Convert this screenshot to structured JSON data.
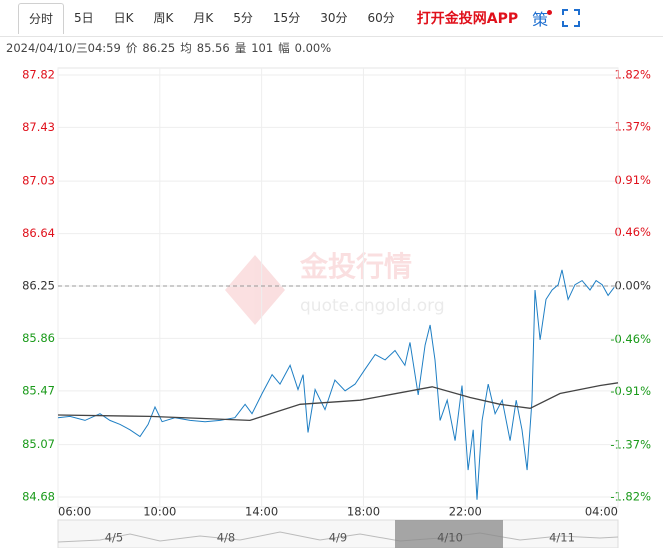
{
  "tabs": [
    "分时",
    "5日",
    "日K",
    "周K",
    "月K",
    "5分",
    "15分",
    "30分",
    "60分"
  ],
  "app_link": "打开金投网APP",
  "strategy_button": "策",
  "info": {
    "time": "2024/04/10/三04:59",
    "items": [
      {
        "label": "价",
        "value": "86.25"
      },
      {
        "label": "均",
        "value": "85.56"
      },
      {
        "label": "量",
        "value": "101"
      },
      {
        "label": "幅",
        "value": "0.00%"
      }
    ]
  },
  "watermark": {
    "title": "金投行情",
    "url": "quote.cngold.org"
  },
  "navigator": {
    "dates": [
      "4/5",
      "4/8",
      "4/9",
      "4/10",
      "4/11"
    ]
  },
  "chart_data": {
    "type": "line",
    "xlim": [
      0,
      22
    ],
    "xticks": [
      {
        "value": 0,
        "label": "06:00"
      },
      {
        "value": 4,
        "label": "10:00"
      },
      {
        "value": 8,
        "label": "14:00"
      },
      {
        "value": 12,
        "label": "18:00"
      },
      {
        "value": 16,
        "label": "22:00"
      },
      {
        "value": 22,
        "label": "04:00"
      }
    ],
    "ylim": [
      84.68,
      87.82
    ],
    "yticks": [
      87.82,
      87.43,
      87.03,
      86.64,
      86.25,
      85.86,
      85.47,
      85.07,
      84.68
    ],
    "y2lim": [
      -1.82,
      1.82
    ],
    "y2ticks": [
      {
        "value": 1.82,
        "label": "1.82%"
      },
      {
        "value": 1.37,
        "label": "1.37%"
      },
      {
        "value": 0.91,
        "label": "0.91%"
      },
      {
        "value": 0.46,
        "label": "0.46%"
      },
      {
        "value": 0,
        "label": "0.00%"
      },
      {
        "value": -0.46,
        "label": "-0.46%"
      },
      {
        "value": -0.91,
        "label": "-0.91%"
      },
      {
        "value": -1.37,
        "label": "-1.37%"
      },
      {
        "value": -1.82,
        "label": "-1.82%"
      }
    ],
    "reference_line": 86.25,
    "up_color": "#e0101b",
    "down_color": "#1a9a1a",
    "flat_color": "#333333",
    "grid": true,
    "series": [
      {
        "color": "#1f7fc4",
        "x": [
          0,
          0.47,
          1.06,
          1.65,
          2.04,
          2.44,
          2.83,
          3.22,
          3.54,
          3.81,
          4.09,
          4.6,
          5.19,
          5.78,
          6.37,
          6.95,
          7.35,
          7.62,
          8.02,
          8.41,
          8.72,
          9.12,
          9.43,
          9.63,
          9.82,
          10.1,
          10.49,
          10.88,
          11.28,
          11.67,
          12.06,
          12.46,
          12.85,
          13.24,
          13.63,
          13.83,
          14.15,
          14.42,
          14.62,
          14.81,
          15.01,
          15.29,
          15.6,
          15.87,
          16.11,
          16.31,
          16.46,
          16.66,
          16.9,
          17.17,
          17.45,
          17.76,
          18,
          18.23,
          18.43,
          18.62,
          18.74,
          18.94,
          19.17,
          19.41,
          19.65,
          19.8,
          20.04,
          20.31,
          20.59,
          20.9,
          21.14,
          21.38,
          21.61,
          21.85
        ],
        "values": [
          85.27,
          85.28,
          85.25,
          85.3,
          85.25,
          85.22,
          85.18,
          85.13,
          85.22,
          85.35,
          85.24,
          85.27,
          85.25,
          85.24,
          85.25,
          85.27,
          85.37,
          85.3,
          85.45,
          85.59,
          85.52,
          85.66,
          85.48,
          85.59,
          85.16,
          85.48,
          85.33,
          85.55,
          85.47,
          85.52,
          85.63,
          85.74,
          85.7,
          85.77,
          85.66,
          85.83,
          85.44,
          85.81,
          85.96,
          85.7,
          85.25,
          85.4,
          85.1,
          85.51,
          84.88,
          85.18,
          84.66,
          85.25,
          85.52,
          85.3,
          85.4,
          85.1,
          85.4,
          85.18,
          84.88,
          85.4,
          86.22,
          85.85,
          86.15,
          86.22,
          86.26,
          86.37,
          86.15,
          86.26,
          86.29,
          86.22,
          86.29,
          86.26,
          86.18,
          86.24
        ]
      },
      {
        "color": "#444444",
        "x": [
          0,
          3.61,
          7.54,
          9.51,
          11.87,
          14.7,
          16.19,
          17.37,
          18.55,
          19.72,
          21.3,
          22
        ],
        "values": [
          85.29,
          85.28,
          85.25,
          85.37,
          85.4,
          85.5,
          85.42,
          85.37,
          85.34,
          85.45,
          85.51,
          85.53
        ]
      }
    ]
  }
}
